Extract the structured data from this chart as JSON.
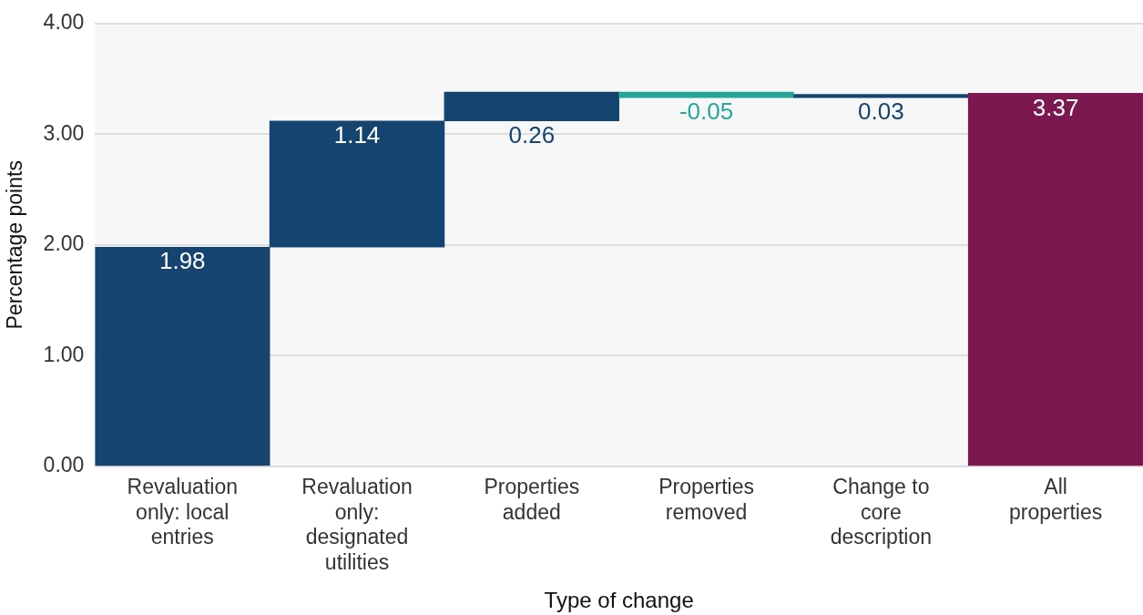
{
  "chart_data": {
    "type": "bar",
    "xlabel": "Type of change",
    "ylabel": "Percentage points",
    "categories": [
      "Revaluation only: local entries",
      "Revaluation only: designated utilities",
      "Properties added",
      "Properties removed",
      "Change to core description",
      "All properties"
    ],
    "values": [
      1.98,
      1.14,
      0.26,
      -0.05,
      0.03,
      3.37
    ],
    "base": [
      0,
      1.98,
      3.12,
      3.38,
      3.33,
      0
    ],
    "colors": [
      "#154470",
      "#154470",
      "#154470",
      "#26a69a",
      "#154470",
      "#7b1850"
    ],
    "ylim": [
      0,
      4
    ],
    "yticks": [
      {
        "value": 0,
        "label": "0.00"
      },
      {
        "value": 1,
        "label": "1.00"
      },
      {
        "value": 2,
        "label": "2.00"
      },
      {
        "value": 3,
        "label": "3.00"
      },
      {
        "value": 4,
        "label": "4.00"
      }
    ],
    "grid": "y",
    "legend": false,
    "data_labels": true
  }
}
